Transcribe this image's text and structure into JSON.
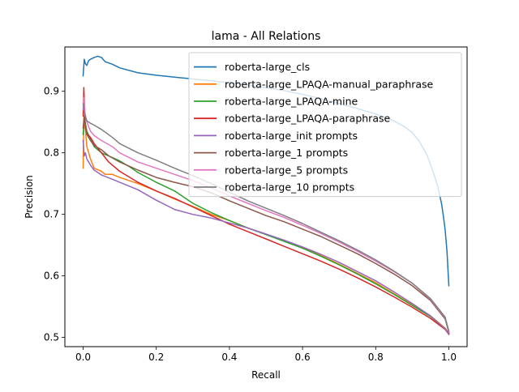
{
  "chart_data": {
    "type": "line",
    "title": "lama - All Relations",
    "xlabel": "Recall",
    "ylabel": "Precision",
    "xlim": [
      -0.05,
      1.05
    ],
    "ylim": [
      0.485,
      0.972
    ],
    "xticks": [
      0.0,
      0.2,
      0.4,
      0.6,
      0.8,
      1.0
    ],
    "xtick_labels": [
      "0.0",
      "0.2",
      "0.4",
      "0.6",
      "0.8",
      "1.0"
    ],
    "yticks": [
      0.5,
      0.6,
      0.7,
      0.8,
      0.9
    ],
    "ytick_labels": [
      "0.5",
      "0.6",
      "0.7",
      "0.8",
      "0.9"
    ],
    "grid": false,
    "legend_position": "upper right",
    "series": [
      {
        "name": "roberta-large_cls",
        "color": "#1f77b4",
        "x": [
          0.0,
          0.003,
          0.006,
          0.01,
          0.015,
          0.02,
          0.03,
          0.04,
          0.05,
          0.06,
          0.08,
          0.1,
          0.15,
          0.2,
          0.25,
          0.3,
          0.35,
          0.4,
          0.45,
          0.5,
          0.55,
          0.6,
          0.65,
          0.7,
          0.75,
          0.8,
          0.85,
          0.88,
          0.9,
          0.92,
          0.94,
          0.95,
          0.96,
          0.97,
          0.98,
          0.985,
          0.99,
          0.995,
          1.0
        ],
        "y": [
          0.925,
          0.952,
          0.945,
          0.942,
          0.95,
          0.952,
          0.955,
          0.957,
          0.955,
          0.948,
          0.944,
          0.938,
          0.93,
          0.926,
          0.923,
          0.92,
          0.917,
          0.914,
          0.91,
          0.906,
          0.901,
          0.895,
          0.888,
          0.88,
          0.872,
          0.863,
          0.852,
          0.842,
          0.833,
          0.818,
          0.797,
          0.781,
          0.764,
          0.745,
          0.718,
          0.698,
          0.675,
          0.64,
          0.584
        ]
      },
      {
        "name": "roberta-large_LPAQA-manual_paraphrase",
        "color": "#ff7f0e",
        "x": [
          0.0,
          0.002,
          0.005,
          0.01,
          0.02,
          0.03,
          0.05,
          0.06,
          0.08,
          0.1,
          0.15,
          0.2,
          0.25,
          0.3,
          0.35,
          0.4,
          0.45,
          0.5,
          0.55,
          0.6,
          0.65,
          0.7,
          0.75,
          0.8,
          0.85,
          0.9,
          0.95,
          0.99,
          1.0
        ],
        "y": [
          0.775,
          0.86,
          0.845,
          0.81,
          0.79,
          0.775,
          0.77,
          0.765,
          0.765,
          0.76,
          0.75,
          0.738,
          0.725,
          0.713,
          0.7,
          0.69,
          0.678,
          0.668,
          0.657,
          0.646,
          0.633,
          0.619,
          0.604,
          0.589,
          0.571,
          0.553,
          0.535,
          0.515,
          0.507
        ]
      },
      {
        "name": "roberta-large_LPAQA-mine",
        "color": "#2ca02c",
        "x": [
          0.0,
          0.003,
          0.006,
          0.01,
          0.02,
          0.03,
          0.05,
          0.07,
          0.1,
          0.13,
          0.15,
          0.2,
          0.25,
          0.3,
          0.35,
          0.4,
          0.45,
          0.5,
          0.55,
          0.6,
          0.65,
          0.7,
          0.75,
          0.8,
          0.85,
          0.9,
          0.95,
          0.99,
          1.0
        ],
        "y": [
          0.83,
          0.855,
          0.848,
          0.835,
          0.822,
          0.81,
          0.8,
          0.795,
          0.787,
          0.776,
          0.768,
          0.752,
          0.738,
          0.718,
          0.703,
          0.69,
          0.678,
          0.667,
          0.656,
          0.645,
          0.632,
          0.618,
          0.603,
          0.587,
          0.57,
          0.552,
          0.534,
          0.514,
          0.506
        ]
      },
      {
        "name": "roberta-large_LPAQA-paraphrase",
        "color": "#d62728",
        "x": [
          0.0,
          0.002,
          0.004,
          0.006,
          0.01,
          0.02,
          0.03,
          0.05,
          0.07,
          0.1,
          0.15,
          0.2,
          0.25,
          0.3,
          0.35,
          0.4,
          0.45,
          0.5,
          0.55,
          0.6,
          0.65,
          0.7,
          0.75,
          0.8,
          0.85,
          0.9,
          0.95,
          0.99,
          1.0
        ],
        "y": [
          0.86,
          0.906,
          0.87,
          0.84,
          0.832,
          0.825,
          0.815,
          0.8,
          0.785,
          0.77,
          0.752,
          0.738,
          0.726,
          0.712,
          0.698,
          0.684,
          0.672,
          0.66,
          0.648,
          0.636,
          0.624,
          0.611,
          0.597,
          0.582,
          0.566,
          0.549,
          0.531,
          0.513,
          0.505
        ]
      },
      {
        "name": "roberta-large_init prompts",
        "color": "#9467bd",
        "x": [
          0.0,
          0.003,
          0.006,
          0.01,
          0.02,
          0.03,
          0.05,
          0.08,
          0.1,
          0.15,
          0.2,
          0.25,
          0.3,
          0.35,
          0.4,
          0.45,
          0.5,
          0.55,
          0.6,
          0.65,
          0.7,
          0.75,
          0.8,
          0.85,
          0.9,
          0.95,
          0.99,
          1.0
        ],
        "y": [
          0.82,
          0.795,
          0.8,
          0.79,
          0.78,
          0.772,
          0.764,
          0.757,
          0.752,
          0.74,
          0.723,
          0.708,
          0.7,
          0.694,
          0.686,
          0.678,
          0.668,
          0.658,
          0.647,
          0.635,
          0.622,
          0.607,
          0.592,
          0.574,
          0.555,
          0.535,
          0.514,
          0.506
        ]
      },
      {
        "name": "roberta-large_1 prompts",
        "color": "#8c564b",
        "x": [
          0.0,
          0.003,
          0.006,
          0.01,
          0.02,
          0.03,
          0.05,
          0.07,
          0.1,
          0.15,
          0.2,
          0.25,
          0.3,
          0.35,
          0.4,
          0.45,
          0.5,
          0.55,
          0.6,
          0.65,
          0.7,
          0.75,
          0.8,
          0.85,
          0.9,
          0.95,
          0.99,
          1.0
        ],
        "y": [
          0.84,
          0.86,
          0.845,
          0.83,
          0.82,
          0.812,
          0.805,
          0.795,
          0.785,
          0.772,
          0.76,
          0.752,
          0.745,
          0.735,
          0.722,
          0.71,
          0.698,
          0.688,
          0.676,
          0.664,
          0.65,
          0.636,
          0.62,
          0.603,
          0.584,
          0.56,
          0.53,
          0.508
        ]
      },
      {
        "name": "roberta-large_5 prompts",
        "color": "#e377c2",
        "x": [
          0.0,
          0.002,
          0.005,
          0.01,
          0.02,
          0.03,
          0.05,
          0.08,
          0.1,
          0.15,
          0.2,
          0.25,
          0.3,
          0.35,
          0.4,
          0.45,
          0.5,
          0.55,
          0.6,
          0.65,
          0.7,
          0.75,
          0.8,
          0.85,
          0.9,
          0.95,
          0.99,
          1.0
        ],
        "y": [
          0.87,
          0.89,
          0.865,
          0.85,
          0.835,
          0.828,
          0.82,
          0.81,
          0.8,
          0.785,
          0.775,
          0.765,
          0.755,
          0.743,
          0.73,
          0.718,
          0.706,
          0.695,
          0.682,
          0.669,
          0.655,
          0.64,
          0.624,
          0.607,
          0.588,
          0.562,
          0.532,
          0.509
        ]
      },
      {
        "name": "roberta-large_10 prompts",
        "color": "#7f7f7f",
        "x": [
          0.0,
          0.002,
          0.005,
          0.01,
          0.02,
          0.03,
          0.05,
          0.08,
          0.1,
          0.15,
          0.2,
          0.25,
          0.3,
          0.35,
          0.4,
          0.45,
          0.5,
          0.55,
          0.6,
          0.65,
          0.7,
          0.75,
          0.8,
          0.85,
          0.9,
          0.95,
          0.99,
          1.0
        ],
        "y": [
          0.88,
          0.87,
          0.86,
          0.852,
          0.848,
          0.845,
          0.838,
          0.825,
          0.815,
          0.8,
          0.788,
          0.775,
          0.763,
          0.75,
          0.736,
          0.722,
          0.71,
          0.698,
          0.685,
          0.671,
          0.657,
          0.642,
          0.626,
          0.608,
          0.588,
          0.563,
          0.533,
          0.51
        ]
      }
    ]
  }
}
